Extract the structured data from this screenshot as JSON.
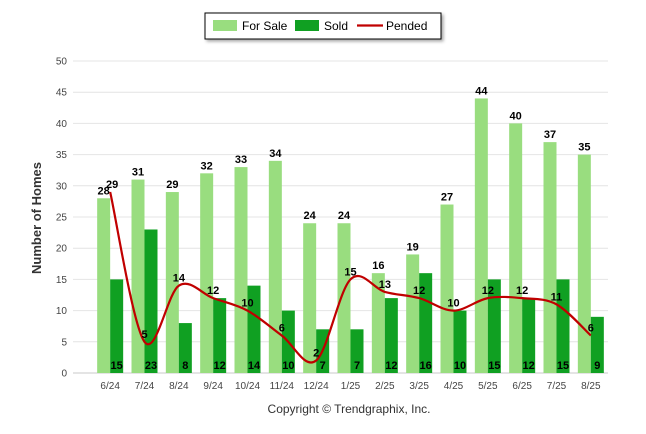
{
  "chart_data": {
    "type": "bar",
    "ylabel": "Number of Homes",
    "ylim": [
      0,
      50
    ],
    "yticks": [
      0,
      5,
      10,
      15,
      20,
      25,
      30,
      35,
      40,
      45,
      50
    ],
    "grid": true,
    "legend_position": "top-center",
    "categories": [
      "6/24",
      "7/24",
      "8/24",
      "9/24",
      "10/24",
      "11/24",
      "12/24",
      "1/25",
      "2/25",
      "3/25",
      "4/25",
      "5/25",
      "6/25",
      "7/25",
      "8/25"
    ],
    "series": [
      {
        "name": "For Sale",
        "type": "bar",
        "color": "#99dd7f",
        "values": [
          28,
          31,
          29,
          32,
          33,
          34,
          24,
          24,
          16,
          19,
          27,
          44,
          40,
          37,
          35
        ]
      },
      {
        "name": "Sold",
        "type": "bar",
        "color": "#10a022",
        "values": [
          15,
          23,
          8,
          12,
          14,
          10,
          7,
          7,
          12,
          16,
          10,
          15,
          12,
          15,
          9
        ]
      },
      {
        "name": "Pended",
        "type": "line",
        "color": "#c00000",
        "values": [
          29,
          5,
          14,
          12,
          10,
          6,
          2,
          15,
          13,
          12,
          10,
          12,
          12,
          11,
          6
        ]
      }
    ]
  },
  "footer": {
    "copyright": "Copyright © Trendgraphix, Inc."
  }
}
